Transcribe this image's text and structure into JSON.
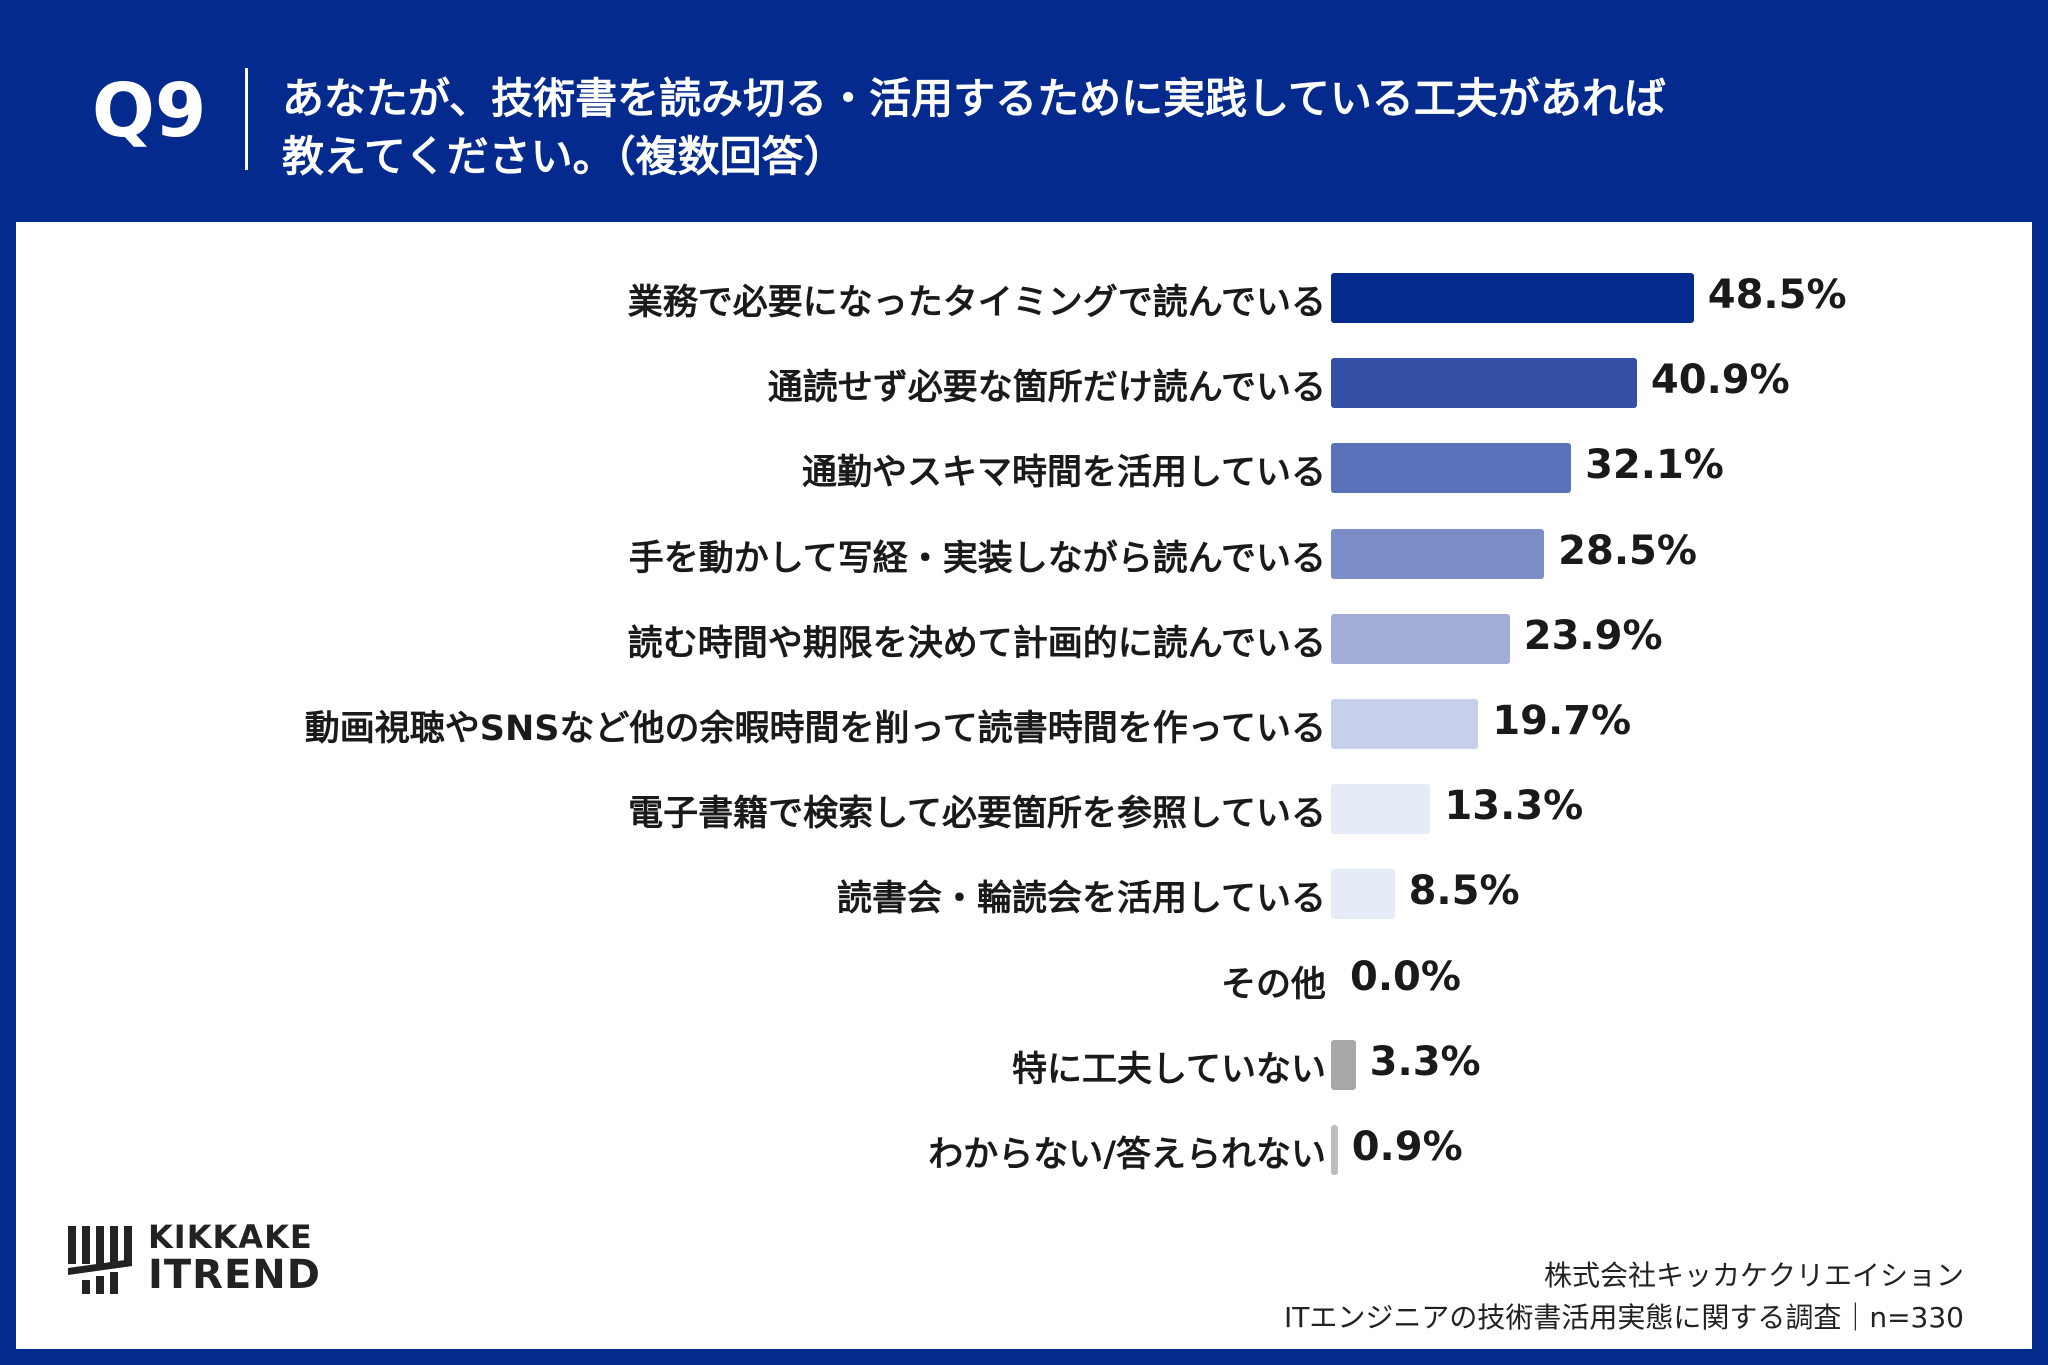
{
  "header": {
    "qnum": "Q9",
    "question_line1": "あなたが、技術書を読み切る・活用するために実践している工夫があれば",
    "question_line2": "教えてください。（複数回答）"
  },
  "chart_data": {
    "type": "bar",
    "orientation": "horizontal",
    "categories": [
      "業務で必要になったタイミングで読んでいる",
      "通読せず必要な箇所だけ読んでいる",
      "通勤やスキマ時間を活用している",
      "手を動かして写経・実装しながら読んでいる",
      "読む時間や期限を決めて計画的に読んでいる",
      "動画視聴やSNSなど他の余暇時間を削って読書時間を作っている",
      "電子書籍で検索して必要箇所を参照している",
      "読書会・輪読会を活用している",
      "その他",
      "特に工夫していない",
      "わからない/答えられない"
    ],
    "values": [
      48.5,
      40.9,
      32.1,
      28.5,
      23.9,
      19.7,
      13.3,
      8.5,
      0.0,
      3.3,
      0.9
    ],
    "value_labels": [
      "48.5%",
      "40.9%",
      "32.1%",
      "28.5%",
      "23.9%",
      "19.7%",
      "13.3%",
      "8.5%",
      "0.0%",
      "3.3%",
      "0.9%"
    ],
    "colors": [
      "#032A8C",
      "#3350A6",
      "#5A72BA",
      "#7C8EC8",
      "#A2AED8",
      "#C7D0EA",
      "#E6ECF7",
      "#E6ECF7",
      "#E6ECF7",
      "#A8A8A8",
      "#BDBDBD"
    ],
    "unit": "%",
    "grid": false,
    "legend": "none"
  },
  "logo": {
    "line1": "KIKKAKE",
    "line2": "ITREND"
  },
  "footer": {
    "company": "株式会社キッカケクリエイション",
    "survey": "ITエンジニアの技術書活用実態に関する調査｜n=330"
  }
}
